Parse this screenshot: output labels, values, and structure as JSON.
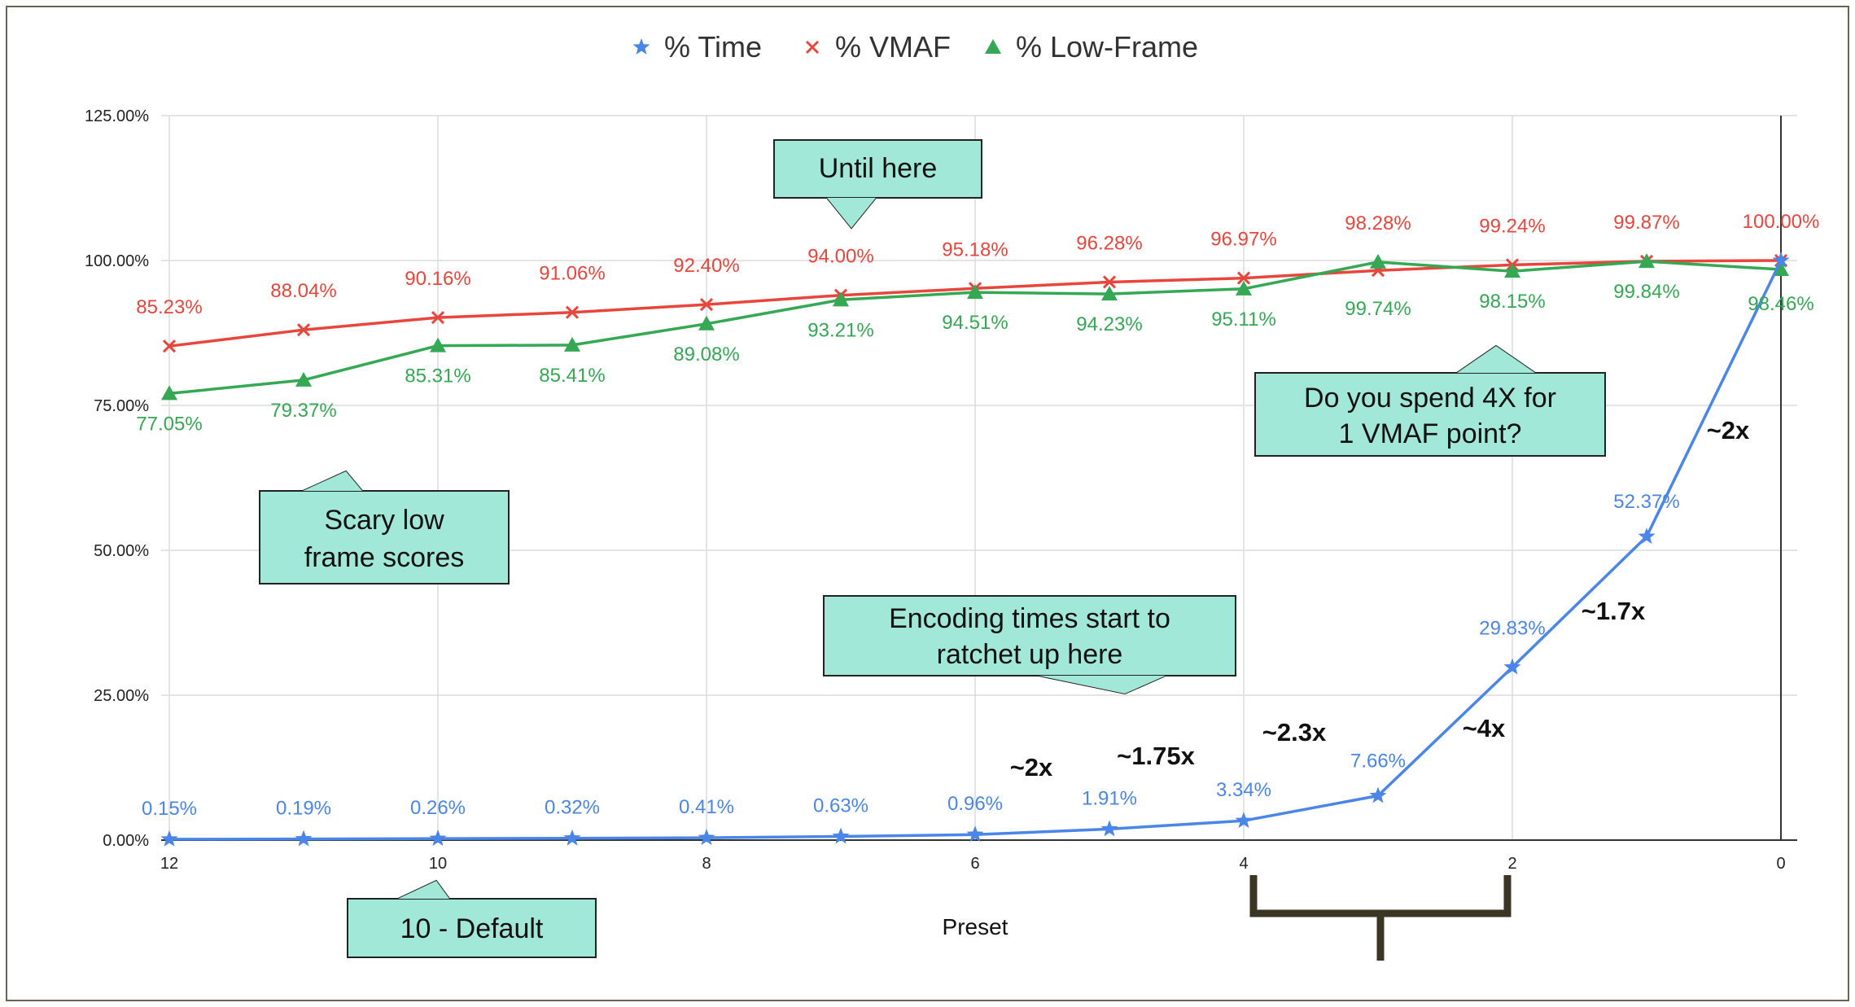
{
  "chart_data": {
    "type": "line",
    "title": "",
    "xlabel": "Preset",
    "ylabel": "",
    "x": [
      12,
      11,
      10,
      9,
      8,
      7,
      6,
      5,
      4,
      3,
      2,
      1,
      0
    ],
    "x_tick_labels": [
      "12",
      "10",
      "8",
      "6",
      "4",
      "2",
      "0"
    ],
    "x_tick_values": [
      12,
      10,
      8,
      6,
      4,
      2,
      0
    ],
    "xlim": [
      12,
      0
    ],
    "ylim": [
      0,
      125
    ],
    "y_tick_labels": [
      "0.00%",
      "25.00%",
      "50.00%",
      "75.00%",
      "100.00%",
      "125.00%"
    ],
    "y_tick_values": [
      0,
      25,
      50,
      75,
      100,
      125
    ],
    "grid": true,
    "legend_position": "top",
    "series": [
      {
        "name": "% Time",
        "color": "#4a86e8",
        "marker": "star",
        "values": [
          0.15,
          0.19,
          0.26,
          0.32,
          0.41,
          0.63,
          0.96,
          1.91,
          3.34,
          7.66,
          29.83,
          52.37,
          100.0
        ],
        "labels": [
          "0.15%",
          "0.19%",
          "0.26%",
          "0.32%",
          "0.41%",
          "0.63%",
          "0.96%",
          "1.91%",
          "3.34%",
          "7.66%",
          "29.83%",
          "52.37%",
          ""
        ]
      },
      {
        "name": "% VMAF",
        "color": "#e8453c",
        "marker": "x",
        "values": [
          85.23,
          88.04,
          90.16,
          91.06,
          92.4,
          94.0,
          95.18,
          96.28,
          96.97,
          98.28,
          99.24,
          99.87,
          100.0
        ],
        "labels": [
          "85.23%",
          "88.04%",
          "90.16%",
          "91.06%",
          "92.40%",
          "94.00%",
          "95.18%",
          "96.28%",
          "96.97%",
          "98.28%",
          "99.24%",
          "99.87%",
          "100.00%"
        ]
      },
      {
        "name": "% Low-Frame",
        "color": "#34a853",
        "marker": "triangle",
        "values": [
          77.05,
          79.37,
          85.31,
          85.41,
          89.08,
          93.21,
          94.51,
          94.23,
          95.11,
          99.74,
          98.15,
          99.84,
          98.46
        ],
        "labels": [
          "77.05%",
          "79.37%",
          "85.31%",
          "85.41%",
          "89.08%",
          "93.21%",
          "94.51%",
          "94.23%",
          "95.11%",
          "99.74%",
          "98.15%",
          "99.84%",
          "98.46%"
        ]
      }
    ],
    "callouts": [
      "Until here",
      "Do you spend 4X for\n1 VMAF point?",
      "Scary low\nframe scores",
      "Encoding times start to\nratchet up here",
      "10 - Default"
    ],
    "multipliers": [
      "~2x",
      "~1.75x",
      "~2.3x",
      "~4x",
      "~1.7x",
      "~2x"
    ]
  }
}
